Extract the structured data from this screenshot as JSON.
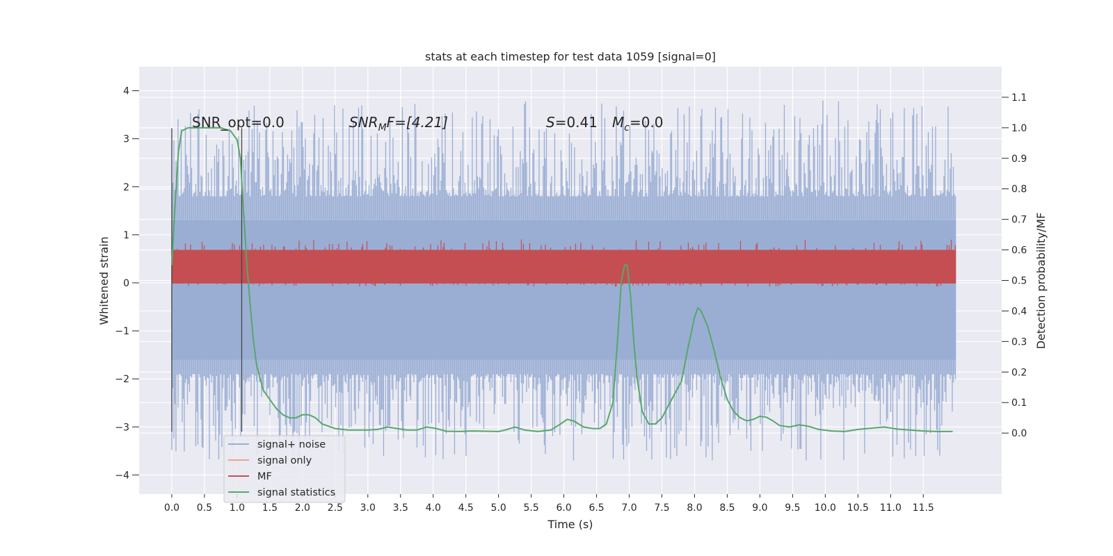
{
  "chart_data": {
    "type": "line",
    "title": "stats at each timestep for test data 1059 [signal=0]",
    "xlabel": "Time (s)",
    "ylabel_left": "Whitened strain",
    "ylabel_right": "Detection probability/MF",
    "xlim": [
      -0.5,
      12.7
    ],
    "ylim_left": [
      -4.4,
      4.5
    ],
    "ylim_right": [
      -0.2,
      1.2
    ],
    "x_ticks": [
      "0.0",
      "0.5",
      "1.0",
      "1.5",
      "2.0",
      "2.5",
      "3.0",
      "3.5",
      "4.0",
      "4.5",
      "5.0",
      "5.5",
      "6.0",
      "6.5",
      "7.0",
      "7.5",
      "8.0",
      "8.5",
      "9.0",
      "9.5",
      "10.0",
      "10.5",
      "11.0",
      "11.5"
    ],
    "y_ticks_left": [
      "−4",
      "−3",
      "−2",
      "−1",
      "0",
      "1",
      "2",
      "3",
      "4"
    ],
    "y_ticks_right": [
      "0.0",
      "0.1",
      "0.2",
      "0.3",
      "0.4",
      "0.5",
      "0.6",
      "0.7",
      "0.8",
      "0.9",
      "1.0",
      "1.1"
    ],
    "grid": true,
    "legend_position": "lower-left",
    "annotations": {
      "snr_opt": "SNR_opt=0.0",
      "snr_mf_pre": "SNR",
      "snr_mf_sub": "M",
      "snr_mf_post": "F=[4.21]",
      "s_stat": "=0.41",
      "s_letter": "S",
      "mc_letter": "M",
      "mc_sub": "c",
      "mc_post": "=0.0"
    },
    "vlines_x": [
      0.0,
      1.07
    ],
    "series": [
      {
        "name": "signal+ noise",
        "color": "#9aaed4",
        "axis": "left",
        "x_range": [
          0.0,
          12.0
        ],
        "band": {
          "core_low": -1.6,
          "core_high": 1.3,
          "peak_low": -3.8,
          "peak_high": 4.1
        }
      },
      {
        "name": "signal only",
        "color": "#eda58c",
        "axis": "left",
        "x_range": [
          0.0,
          12.0
        ],
        "values_note_value": 0
      },
      {
        "name": "MF",
        "color": "#c44e52",
        "axis": "right",
        "x_range": [
          0.0,
          12.0
        ],
        "band": {
          "low": 0.49,
          "high": 0.6
        }
      },
      {
        "name": "signal statistics",
        "color": "#55a868",
        "axis": "right",
        "points": [
          [
            0.0,
            0.55
          ],
          [
            0.05,
            0.75
          ],
          [
            0.1,
            0.92
          ],
          [
            0.15,
            0.99
          ],
          [
            0.25,
            1.0
          ],
          [
            0.5,
            1.0
          ],
          [
            0.75,
            1.0
          ],
          [
            0.9,
            0.99
          ],
          [
            1.0,
            0.96
          ],
          [
            1.05,
            0.9
          ],
          [
            1.1,
            0.72
          ],
          [
            1.15,
            0.55
          ],
          [
            1.2,
            0.42
          ],
          [
            1.25,
            0.3
          ],
          [
            1.3,
            0.22
          ],
          [
            1.4,
            0.14
          ],
          [
            1.5,
            0.11
          ],
          [
            1.6,
            0.08
          ],
          [
            1.7,
            0.06
          ],
          [
            1.8,
            0.05
          ],
          [
            1.9,
            0.05
          ],
          [
            2.0,
            0.06
          ],
          [
            2.1,
            0.06
          ],
          [
            2.2,
            0.05
          ],
          [
            2.3,
            0.03
          ],
          [
            2.5,
            0.015
          ],
          [
            2.7,
            0.01
          ],
          [
            2.9,
            0.01
          ],
          [
            3.0,
            0.01
          ],
          [
            3.15,
            0.012
          ],
          [
            3.3,
            0.02
          ],
          [
            3.45,
            0.015
          ],
          [
            3.6,
            0.01
          ],
          [
            3.75,
            0.01
          ],
          [
            3.9,
            0.02
          ],
          [
            4.05,
            0.015
          ],
          [
            4.2,
            0.006
          ],
          [
            4.4,
            0.005
          ],
          [
            4.6,
            0.007
          ],
          [
            4.8,
            0.006
          ],
          [
            5.0,
            0.005
          ],
          [
            5.1,
            0.01
          ],
          [
            5.25,
            0.02
          ],
          [
            5.4,
            0.01
          ],
          [
            5.6,
            0.005
          ],
          [
            5.8,
            0.01
          ],
          [
            5.95,
            0.03
          ],
          [
            6.05,
            0.045
          ],
          [
            6.15,
            0.04
          ],
          [
            6.3,
            0.02
          ],
          [
            6.45,
            0.015
          ],
          [
            6.55,
            0.015
          ],
          [
            6.65,
            0.03
          ],
          [
            6.75,
            0.1
          ],
          [
            6.82,
            0.3
          ],
          [
            6.88,
            0.5
          ],
          [
            6.93,
            0.55
          ],
          [
            6.97,
            0.55
          ],
          [
            7.02,
            0.45
          ],
          [
            7.07,
            0.3
          ],
          [
            7.12,
            0.18
          ],
          [
            7.2,
            0.07
          ],
          [
            7.3,
            0.03
          ],
          [
            7.4,
            0.03
          ],
          [
            7.5,
            0.05
          ],
          [
            7.6,
            0.09
          ],
          [
            7.7,
            0.13
          ],
          [
            7.8,
            0.17
          ],
          [
            7.9,
            0.28
          ],
          [
            8.0,
            0.38
          ],
          [
            8.05,
            0.41
          ],
          [
            8.1,
            0.4
          ],
          [
            8.2,
            0.35
          ],
          [
            8.3,
            0.27
          ],
          [
            8.4,
            0.18
          ],
          [
            8.5,
            0.11
          ],
          [
            8.6,
            0.07
          ],
          [
            8.7,
            0.05
          ],
          [
            8.8,
            0.04
          ],
          [
            8.9,
            0.045
          ],
          [
            9.0,
            0.055
          ],
          [
            9.1,
            0.052
          ],
          [
            9.2,
            0.04
          ],
          [
            9.3,
            0.025
          ],
          [
            9.45,
            0.02
          ],
          [
            9.6,
            0.027
          ],
          [
            9.75,
            0.022
          ],
          [
            9.9,
            0.012
          ],
          [
            10.1,
            0.007
          ],
          [
            10.3,
            0.005
          ],
          [
            10.5,
            0.012
          ],
          [
            10.7,
            0.016
          ],
          [
            10.9,
            0.02
          ],
          [
            11.1,
            0.013
          ],
          [
            11.3,
            0.01
          ],
          [
            11.5,
            0.007
          ],
          [
            11.7,
            0.005
          ],
          [
            11.95,
            0.005
          ]
        ]
      }
    ]
  }
}
